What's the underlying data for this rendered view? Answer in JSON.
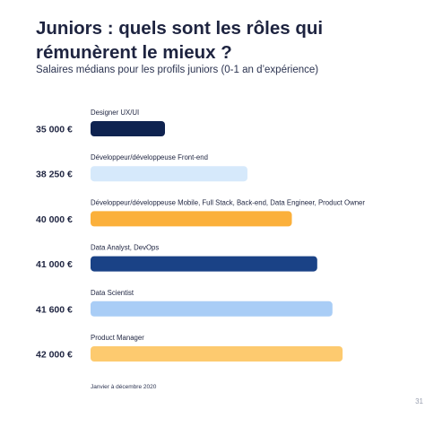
{
  "header": {
    "title": "Juniors : quels sont les rôles qui rémunèrent le mieux ?",
    "subtitle": "Salaires médians pour les profils juniors (0-1 an d’expérience)"
  },
  "footer": {
    "note": "Janvier à décembre 2020",
    "page": "31"
  },
  "chart_data": {
    "type": "bar",
    "orientation": "horizontal",
    "title": "Juniors : quels sont les rôles qui rémunèrent le mieux ?",
    "subtitle": "Salaires médians pour les profils juniors (0-1 an d’expérience)",
    "categories": [
      "Designer UX/UI",
      "Développeur/développeuse Front-end",
      "Développeur/développeuse Mobile, Full Stack, Back-end, Data Engineer, Product Owner",
      "Data Analyst, DevOps",
      "Data Scientist",
      "Product Manager"
    ],
    "values": [
      35000,
      38250,
      40000,
      41000,
      41600,
      42000
    ],
    "value_labels": [
      "35 000 €",
      "38 250 €",
      "40 000 €",
      "41 000 €",
      "41 600 €",
      "42 000 €"
    ],
    "colors": [
      "#0f2350",
      "#d6e9fb",
      "#fbb03b",
      "#1a4286",
      "#a9cdf6",
      "#fdca6f"
    ],
    "xlabel": "",
    "ylabel": "",
    "grid": false,
    "legend": "none"
  }
}
